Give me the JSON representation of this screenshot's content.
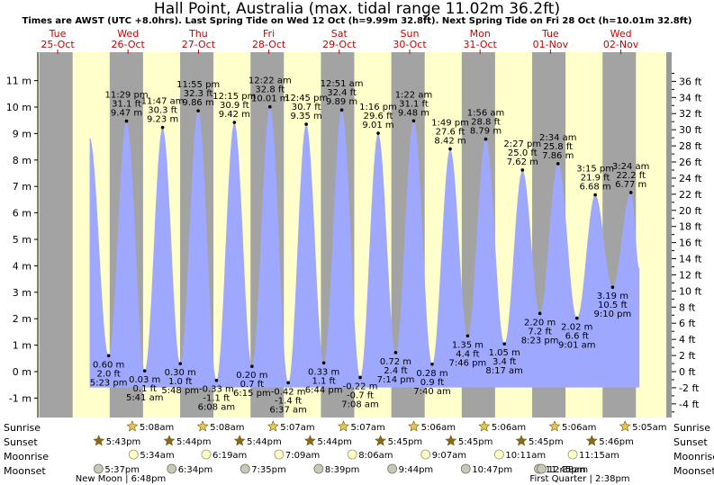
{
  "title": "Hall Point, Australia (max. tidal range 11.02m 36.2ft)",
  "subtitle": "Times are AWST (UTC +8.0hrs). Last Spring Tide on Wed 12 Oct (h=9.99m 32.8ft). Next Spring Tide on Fri 28 Oct (h=10.01m 32.8ft)",
  "colors": {
    "tide": "#9fa8ff",
    "day": "#ffffcc",
    "night": "#a3a3a3",
    "axis_bg": "#999999"
  },
  "chart_data": {
    "type": "area",
    "days": [
      {
        "dow": "Tue",
        "date": "25-Oct"
      },
      {
        "dow": "Wed",
        "date": "26-Oct"
      },
      {
        "dow": "Thu",
        "date": "27-Oct"
      },
      {
        "dow": "Fri",
        "date": "28-Oct"
      },
      {
        "dow": "Sat",
        "date": "29-Oct"
      },
      {
        "dow": "Sun",
        "date": "30-Oct"
      },
      {
        "dow": "Mon",
        "date": "31-Oct"
      },
      {
        "dow": "Tue",
        "date": "01-Nov"
      },
      {
        "dow": "Wed",
        "date": "02-Nov"
      }
    ],
    "left_axis": {
      "unit": "m",
      "ticks": [
        "-1 m",
        "0 m",
        "1 m",
        "2 m",
        "3 m",
        "4 m",
        "5 m",
        "6 m",
        "7 m",
        "8 m",
        "9 m",
        "10 m",
        "11 m"
      ],
      "ylim": [
        -1.5,
        11.6
      ]
    },
    "right_axis": {
      "unit": "ft",
      "ticks": [
        "-4 ft",
        "-2 ft",
        "0 ft",
        "2 ft",
        "4 ft",
        "6 ft",
        "8 ft",
        "10 ft",
        "12 ft",
        "14 ft",
        "16 ft",
        "18 ft",
        "20 ft",
        "22 ft",
        "24 ft",
        "26 ft",
        "28 ft",
        "30 ft",
        "32 ft",
        "34 ft",
        "36 ft"
      ]
    },
    "tides": [
      {
        "time": "10:55 am",
        "m": 8.85,
        "label": false
      },
      {
        "time": "5:23 pm",
        "m": 0.6,
        "ft": "2.0 ft",
        "type": "low"
      },
      {
        "time": "11:29 pm",
        "m": 9.47,
        "ft": "31.1 ft",
        "type": "high"
      },
      {
        "time": "5:41 am",
        "m": 0.03,
        "ft": "0.1 ft",
        "type": "low"
      },
      {
        "time": "11:47 am",
        "m": 9.23,
        "ft": "30.3 ft",
        "type": "high"
      },
      {
        "time": "5:48 pm",
        "m": 0.3,
        "ft": "1.0 ft",
        "type": "low"
      },
      {
        "time": "11:55 pm",
        "m": 9.86,
        "ft": "32.3 ft",
        "type": "high"
      },
      {
        "time": "6:08 am",
        "m": -0.33,
        "ft": "-1.1 ft",
        "type": "low"
      },
      {
        "time": "12:15 pm",
        "m": 9.42,
        "ft": "30.9 ft",
        "type": "high"
      },
      {
        "time": "6:15 pm",
        "m": 0.2,
        "ft": "0.7 ft",
        "type": "low"
      },
      {
        "time": "12:22 am",
        "m": 10.01,
        "ft": "32.8 ft",
        "type": "high"
      },
      {
        "time": "6:37 am",
        "m": -0.42,
        "ft": "-1.4 ft",
        "type": "low"
      },
      {
        "time": "12:45 pm",
        "m": 9.35,
        "ft": "30.7 ft",
        "type": "high"
      },
      {
        "time": "6:44 pm",
        "m": 0.33,
        "ft": "1.1 ft",
        "type": "low"
      },
      {
        "time": "12:51 am",
        "m": 9.89,
        "ft": "32.4 ft",
        "type": "high"
      },
      {
        "time": "7:08 am",
        "m": -0.22,
        "ft": "-0.7 ft",
        "type": "low"
      },
      {
        "time": "1:16 pm",
        "m": 9.01,
        "ft": "29.6 ft",
        "type": "high"
      },
      {
        "time": "7:14 pm",
        "m": 0.72,
        "ft": "2.4 ft",
        "type": "low"
      },
      {
        "time": "1:22 am",
        "m": 9.48,
        "ft": "31.1 ft",
        "type": "high"
      },
      {
        "time": "7:40 am",
        "m": 0.28,
        "ft": "0.9 ft",
        "type": "low"
      },
      {
        "time": "1:49 pm",
        "m": 8.42,
        "ft": "27.6 ft",
        "type": "high"
      },
      {
        "time": "7:46 pm",
        "m": 1.35,
        "ft": "4.4 ft",
        "type": "low"
      },
      {
        "time": "1:56 am",
        "m": 8.79,
        "ft": "28.8 ft",
        "type": "high"
      },
      {
        "time": "8:17 am",
        "m": 1.05,
        "ft": "3.4 ft",
        "type": "low"
      },
      {
        "time": "2:27 pm",
        "m": 7.62,
        "ft": "25.0 ft",
        "type": "high"
      },
      {
        "time": "8:23 pm",
        "m": 2.2,
        "ft": "7.2 ft",
        "type": "low"
      },
      {
        "time": "2:34 am",
        "m": 7.86,
        "ft": "25.8 ft",
        "type": "high"
      },
      {
        "time": "9:01 am",
        "m": 2.02,
        "ft": "6.6 ft",
        "type": "low"
      },
      {
        "time": "3:15 pm",
        "m": 6.68,
        "ft": "21.9 ft",
        "type": "high"
      },
      {
        "time": "9:10 pm",
        "m": 3.19,
        "ft": "10.5 ft",
        "type": "low"
      },
      {
        "time": "3:24 am",
        "m": 6.77,
        "ft": "22.2 ft",
        "type": "high"
      },
      {
        "time": "6:20 am",
        "m": 3.9,
        "label": false
      }
    ],
    "rows": {
      "sunrise": "Sunrise",
      "sunset": "Sunset",
      "moonrise": "Moonrise",
      "moonset": "Moonset"
    },
    "sunrise": [
      "5:08am",
      "5:08am",
      "5:07am",
      "5:07am",
      "5:06am",
      "5:06am",
      "5:06am",
      "5:05am"
    ],
    "sunset": [
      "5:43pm",
      "5:44pm",
      "5:44pm",
      "5:44pm",
      "5:45pm",
      "5:45pm",
      "5:45pm",
      "5:46pm"
    ],
    "moonrise": [
      "5:34am",
      "6:19am",
      "7:09am",
      "8:06am",
      "9:07am",
      "10:11am",
      "11:15am"
    ],
    "moonset": [
      "5:37pm",
      "6:34pm",
      "7:35pm",
      "8:39pm",
      "9:44pm",
      "10:47pm",
      "11:45pm",
      "12:38am"
    ],
    "phases": [
      {
        "text": "New Moon | 6:48pm"
      },
      {
        "text": "First Quarter | 2:38pm"
      }
    ]
  }
}
